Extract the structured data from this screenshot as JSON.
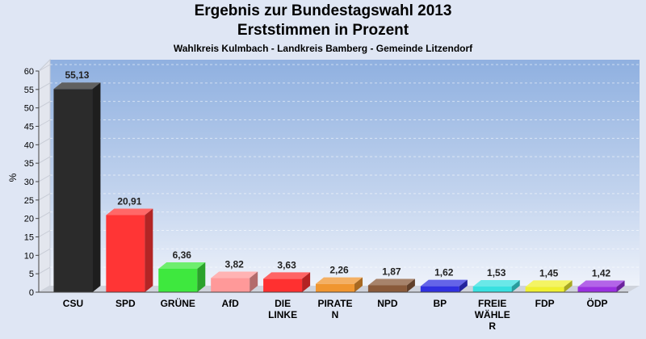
{
  "chart_data": {
    "type": "bar",
    "title": "Ergebnis zur Bundestagswahl 2013",
    "subtitle": "Erststimmen in Prozent",
    "subtitle2": "Wahlkreis Kulmbach - Landkreis Bamberg - Gemeinde Litzendorf",
    "ylabel": "%",
    "xlabel": "",
    "ylim": [
      0,
      60
    ],
    "yticks": [
      0,
      5,
      10,
      15,
      20,
      25,
      30,
      35,
      40,
      45,
      50,
      55,
      60
    ],
    "grid": true,
    "categories": [
      [
        "CSU"
      ],
      [
        "SPD"
      ],
      [
        "GRÜNE"
      ],
      [
        "AfD"
      ],
      [
        "DIE",
        "LINKE"
      ],
      [
        "PIRATE",
        "N"
      ],
      [
        "NPD"
      ],
      [
        "BP"
      ],
      [
        "FREIE",
        "WÄHLE",
        "R"
      ],
      [
        "FDP"
      ],
      [
        "ÖDP"
      ]
    ],
    "values": [
      55.13,
      20.91,
      6.36,
      3.82,
      3.63,
      2.26,
      1.87,
      1.62,
      1.53,
      1.45,
      1.42
    ],
    "value_labels": [
      "55,13",
      "20,91",
      "6,36",
      "3,82",
      "3,63",
      "2,26",
      "1,87",
      "1,62",
      "1,53",
      "1,45",
      "1,42"
    ],
    "colors": [
      "#2b2b2b",
      "#ff3535",
      "#3ee83e",
      "#ff9999",
      "#ff3030",
      "#f09630",
      "#8a5a3a",
      "#3030e0",
      "#38e0e0",
      "#f0f030",
      "#9a30e0"
    ]
  }
}
